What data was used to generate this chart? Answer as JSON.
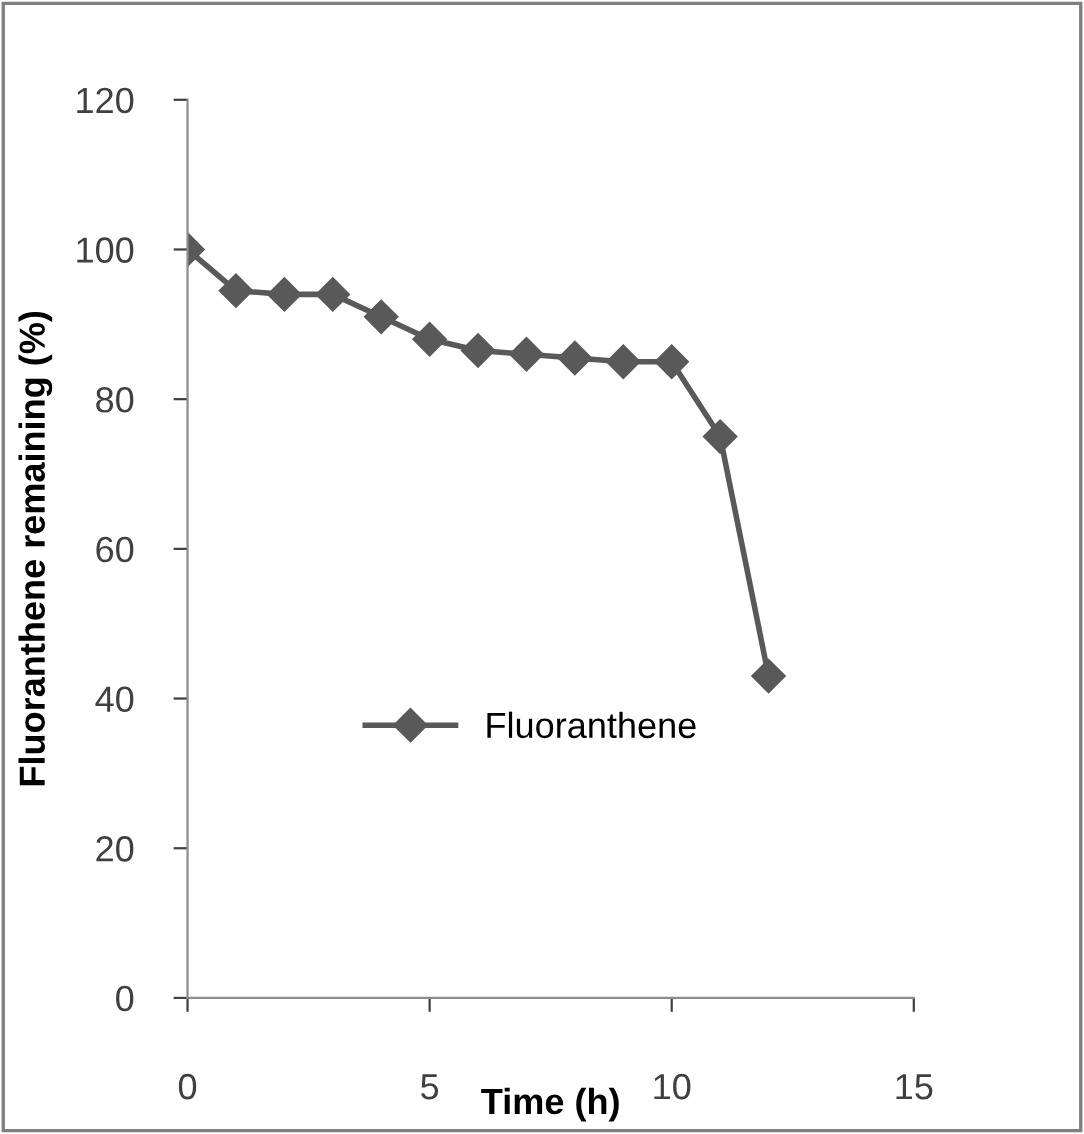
{
  "chart_data": {
    "type": "line",
    "xlabel": "Time (h)",
    "ylabel": "Fluoranthene remaining (%)",
    "x": [
      0,
      1,
      2,
      3,
      4,
      5,
      6,
      7,
      8,
      9,
      10,
      11,
      12
    ],
    "series": [
      {
        "name": "Fluoranthene",
        "color": "#595959",
        "values": [
          100,
          94.5,
          94,
          94,
          91,
          88,
          86.5,
          86,
          85.5,
          85,
          85,
          75,
          43
        ]
      }
    ],
    "xlim": [
      0,
      15
    ],
    "xticks": [
      0,
      5,
      10,
      15
    ],
    "ylim": [
      0,
      120
    ],
    "yticks": [
      0,
      20,
      40,
      60,
      80,
      100,
      120
    ],
    "marker": "diamond",
    "line_style": "solid",
    "grid": false,
    "legend": "left"
  }
}
